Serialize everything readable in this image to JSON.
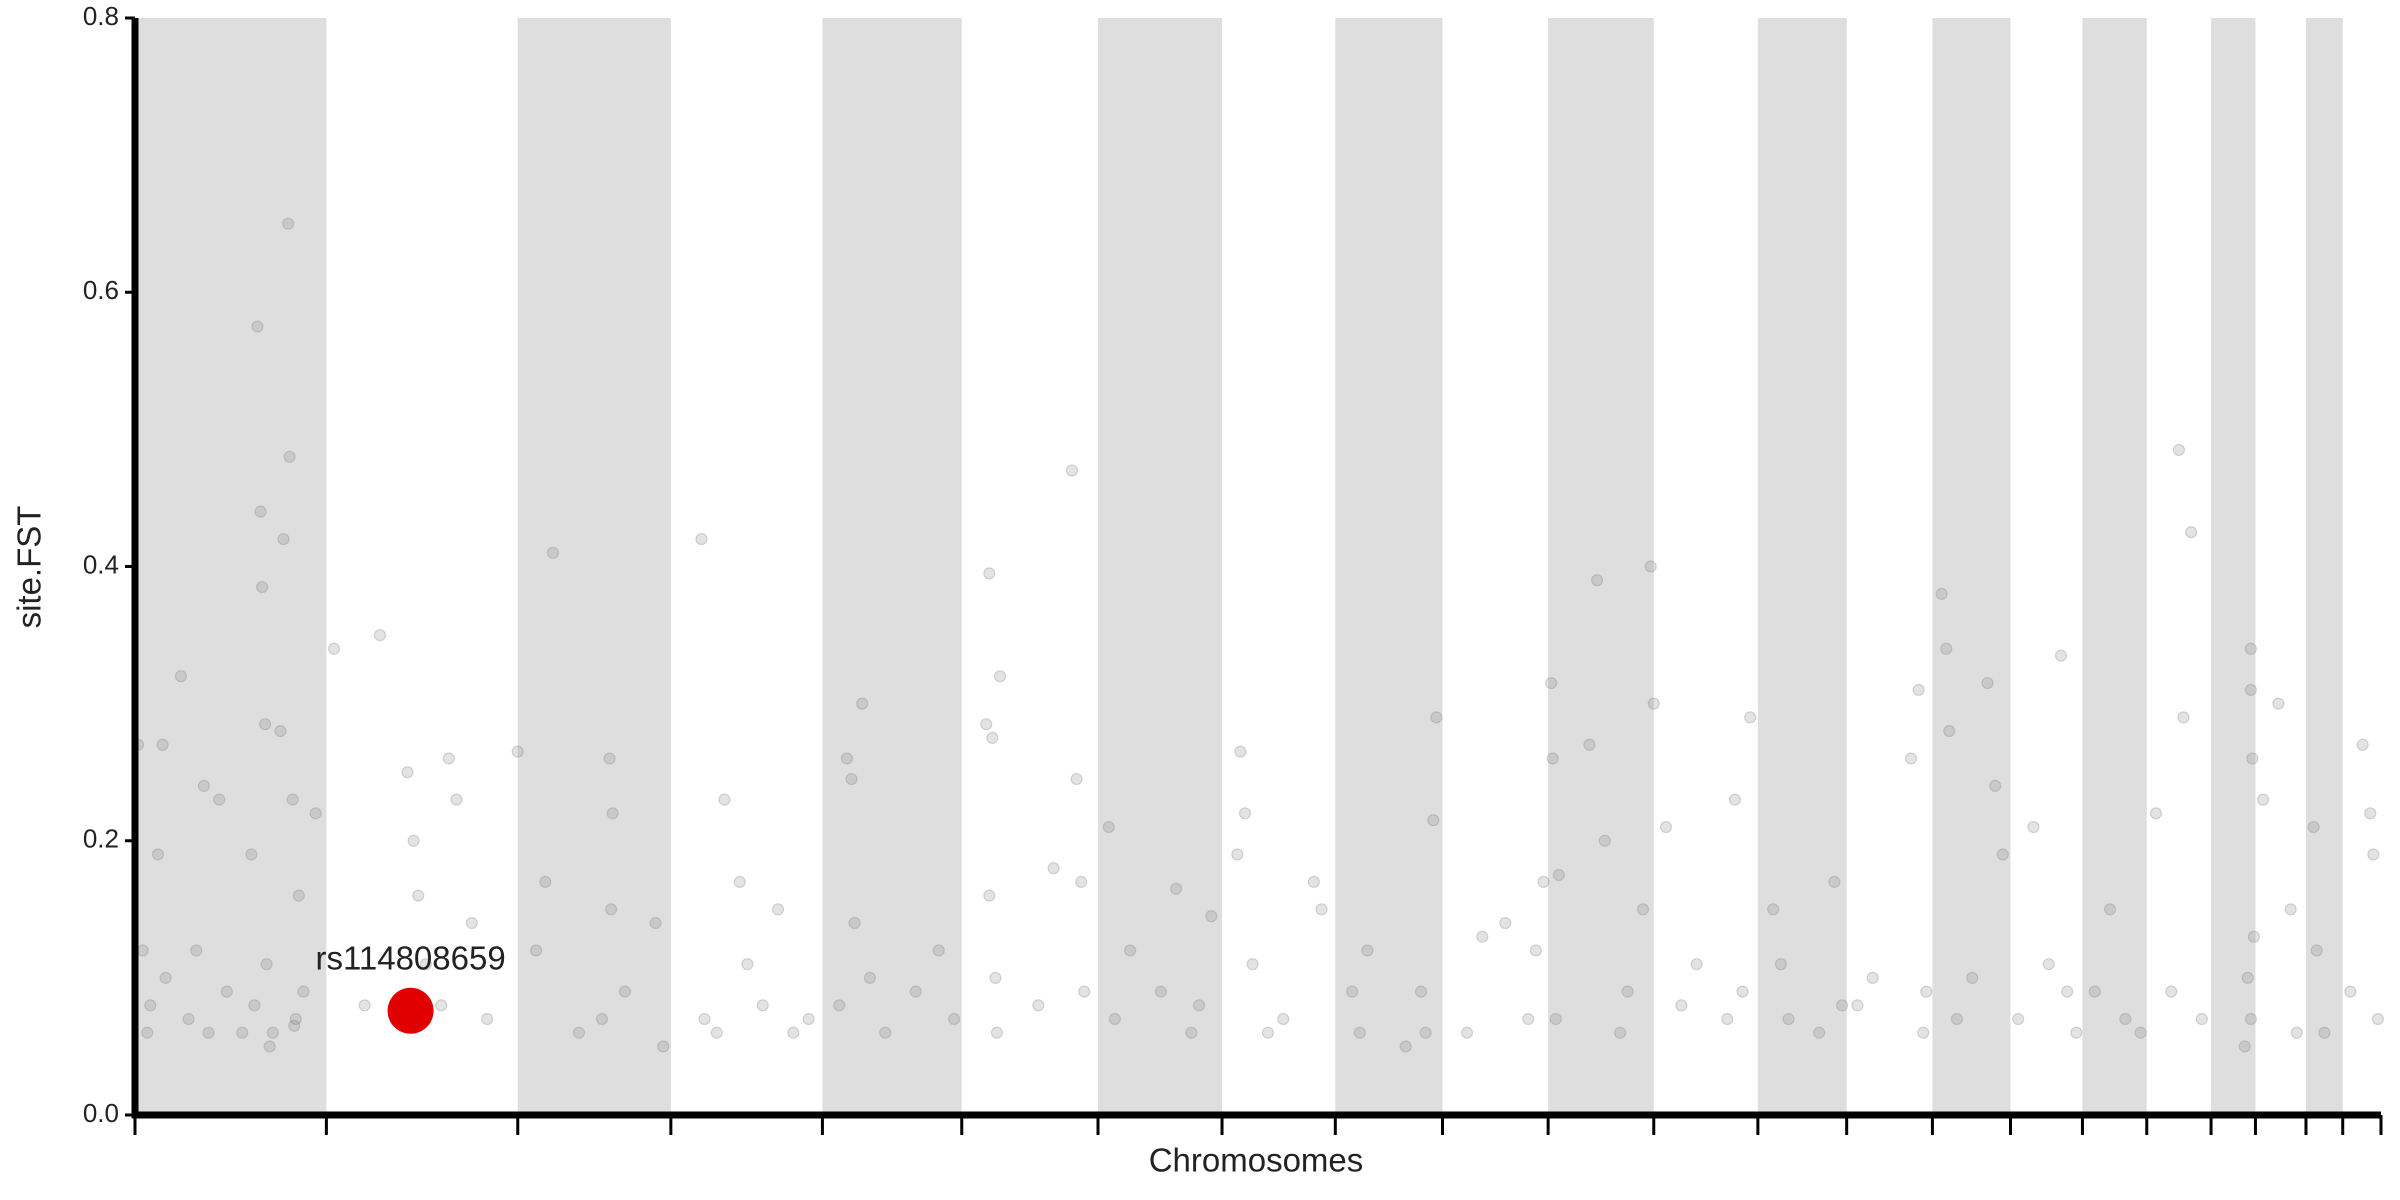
{
  "chart_data": {
    "type": "scatter",
    "x_label": "Chromosomes",
    "y_label": "site.FST",
    "xlim": [
      0,
      1467
    ],
    "ylim": [
      0,
      0.8
    ],
    "yticks": [
      {
        "value": 0,
        "label": "0.0"
      },
      0.2,
      0.4,
      0.6,
      0.8
    ],
    "chromosome_boundaries": [
      0,
      125,
      250,
      350,
      449,
      540,
      629,
      710,
      784,
      854,
      923,
      992,
      1060,
      1118,
      1174,
      1225,
      1272,
      1314,
      1356,
      1385,
      1418,
      1442,
      1467
    ],
    "band_color": "#dedede",
    "color": "#808080",
    "x": [
      2,
      5,
      8,
      10,
      15,
      18,
      20,
      30,
      35,
      40,
      45,
      48,
      55,
      60,
      70,
      76,
      80,
      82,
      83,
      85,
      86,
      90,
      95,
      97,
      100,
      101,
      103,
      105,
      107,
      110,
      118,
      78,
      104,
      88,
      130,
      160,
      178,
      182,
      185,
      200,
      205,
      210,
      220,
      230,
      150,
      190,
      250,
      262,
      268,
      273,
      290,
      310,
      312,
      311,
      305,
      340,
      345,
      320,
      370,
      372,
      385,
      380,
      395,
      410,
      420,
      440,
      400,
      430,
      465,
      468,
      475,
      470,
      460,
      480,
      490,
      510,
      525,
      535,
      556,
      558,
      560,
      562,
      563,
      565,
      558,
      600,
      612,
      615,
      618,
      590,
      620,
      636,
      640,
      650,
      670,
      680,
      695,
      703,
      690,
      720,
      722,
      725,
      730,
      740,
      750,
      770,
      775,
      795,
      800,
      805,
      840,
      843,
      850,
      848,
      830,
      870,
      880,
      895,
      910,
      915,
      920,
      925,
      926,
      928,
      930,
      950,
      955,
      960,
      975,
      985,
      990,
      992,
      970,
      1000,
      1010,
      1020,
      1040,
      1045,
      1050,
      1055,
      1070,
      1075,
      1080,
      1100,
      1110,
      1115,
      1125,
      1135,
      1160,
      1165,
      1170,
      1168,
      1180,
      1183,
      1185,
      1190,
      1200,
      1210,
      1215,
      1220,
      1230,
      1240,
      1250,
      1258,
      1262,
      1268,
      1280,
      1290,
      1300,
      1310,
      1320,
      1330,
      1335,
      1343,
      1338,
      1350,
      1382,
      1382,
      1383,
      1384,
      1382,
      1380,
      1378,
      1390,
      1400,
      1408,
      1412,
      1423,
      1425,
      1430,
      1447,
      1455,
      1460,
      1462,
      1465
    ],
    "values": [
      0.27,
      0.12,
      0.06,
      0.08,
      0.19,
      0.27,
      0.1,
      0.32,
      0.07,
      0.12,
      0.24,
      0.06,
      0.23,
      0.09,
      0.06,
      0.19,
      0.575,
      0.44,
      0.385,
      0.285,
      0.11,
      0.06,
      0.28,
      0.42,
      0.65,
      0.48,
      0.23,
      0.07,
      0.16,
      0.09,
      0.22,
      0.08,
      0.065,
      0.05,
      0.34,
      0.35,
      0.25,
      0.2,
      0.16,
      0.08,
      0.26,
      0.23,
      0.14,
      0.07,
      0.08,
      0.11,
      0.265,
      0.12,
      0.17,
      0.41,
      0.06,
      0.26,
      0.22,
      0.15,
      0.07,
      0.14,
      0.05,
      0.09,
      0.42,
      0.07,
      0.23,
      0.06,
      0.17,
      0.08,
      0.15,
      0.07,
      0.11,
      0.06,
      0.26,
      0.245,
      0.3,
      0.14,
      0.08,
      0.1,
      0.06,
      0.09,
      0.12,
      0.07,
      0.285,
      0.395,
      0.275,
      0.1,
      0.06,
      0.32,
      0.16,
      0.18,
      0.47,
      0.245,
      0.17,
      0.08,
      0.09,
      0.21,
      0.07,
      0.12,
      0.09,
      0.165,
      0.08,
      0.145,
      0.06,
      0.19,
      0.265,
      0.22,
      0.11,
      0.06,
      0.07,
      0.17,
      0.15,
      0.09,
      0.06,
      0.12,
      0.09,
      0.06,
      0.29,
      0.215,
      0.05,
      0.06,
      0.13,
      0.14,
      0.07,
      0.12,
      0.17,
      0.315,
      0.26,
      0.07,
      0.175,
      0.27,
      0.39,
      0.2,
      0.09,
      0.15,
      0.4,
      0.3,
      0.06,
      0.21,
      0.08,
      0.11,
      0.07,
      0.23,
      0.09,
      0.29,
      0.15,
      0.11,
      0.07,
      0.06,
      0.17,
      0.08,
      0.08,
      0.1,
      0.26,
      0.31,
      0.09,
      0.06,
      0.38,
      0.34,
      0.28,
      0.07,
      0.1,
      0.315,
      0.24,
      0.19,
      0.07,
      0.21,
      0.11,
      0.335,
      0.09,
      0.06,
      0.09,
      0.15,
      0.07,
      0.06,
      0.22,
      0.09,
      0.485,
      0.425,
      0.29,
      0.07,
      0.34,
      0.31,
      0.26,
      0.13,
      0.07,
      0.1,
      0.05,
      0.23,
      0.3,
      0.15,
      0.06,
      0.21,
      0.12,
      0.06,
      0.09,
      0.27,
      0.22,
      0.19,
      0.07
    ],
    "highlight": {
      "label": "rs114808659",
      "x": 180,
      "y": 0.076,
      "color": "#e00000"
    }
  }
}
